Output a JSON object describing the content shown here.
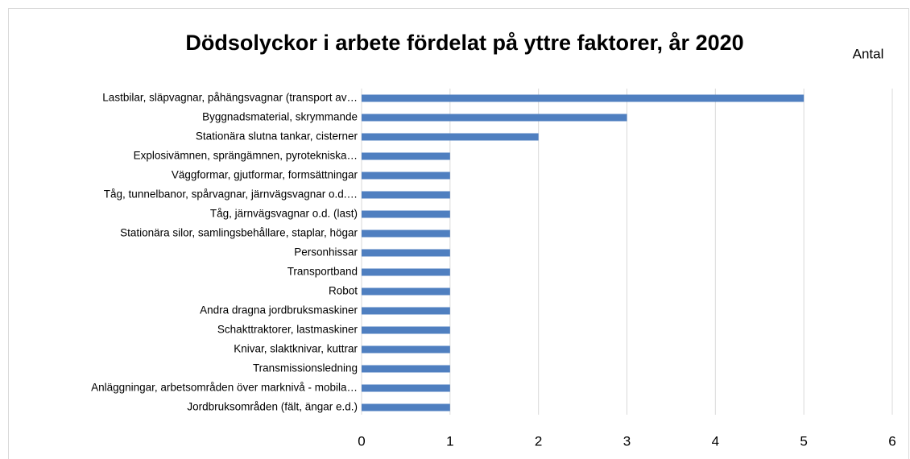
{
  "chart_data": {
    "type": "barh",
    "title": "Dödsolyckor i arbete fördelat på yttre faktorer, år 2020",
    "x_label": "Antal",
    "categories": [
      "Lastbilar, släpvagnar, påhängsvagnar (transport av…",
      "Byggnadsmaterial, skrymmande",
      "Stationära slutna tankar, cisterner",
      "Explosivämnen, sprängämnen, pyrotekniska…",
      "Väggformar, gjutformar, formsättningar",
      "Tåg, tunnelbanor, spårvagnar, järnvägsvagnar o.d.…",
      "Tåg, järnvägsvagnar o.d. (last)",
      "Stationära silor, samlingsbehållare, staplar, högar",
      "Personhissar",
      "Transportband",
      "Robot",
      "Andra dragna jordbruksmaskiner",
      "Schakttraktorer, lastmaskiner",
      "Knivar, slaktknivar, kuttrar",
      "Transmissionsledning",
      "Anläggningar, arbetsområden över marknivå - mobila…",
      "Jordbruksområden (fält, ängar e.d.)"
    ],
    "values": [
      5,
      3,
      2,
      1,
      1,
      1,
      1,
      1,
      1,
      1,
      1,
      1,
      1,
      1,
      1,
      1,
      1
    ],
    "color": "#4f7fc0",
    "xlim": [
      0,
      6
    ],
    "xticks": [
      0,
      1,
      2,
      3,
      4,
      5,
      6
    ],
    "grid": true
  }
}
